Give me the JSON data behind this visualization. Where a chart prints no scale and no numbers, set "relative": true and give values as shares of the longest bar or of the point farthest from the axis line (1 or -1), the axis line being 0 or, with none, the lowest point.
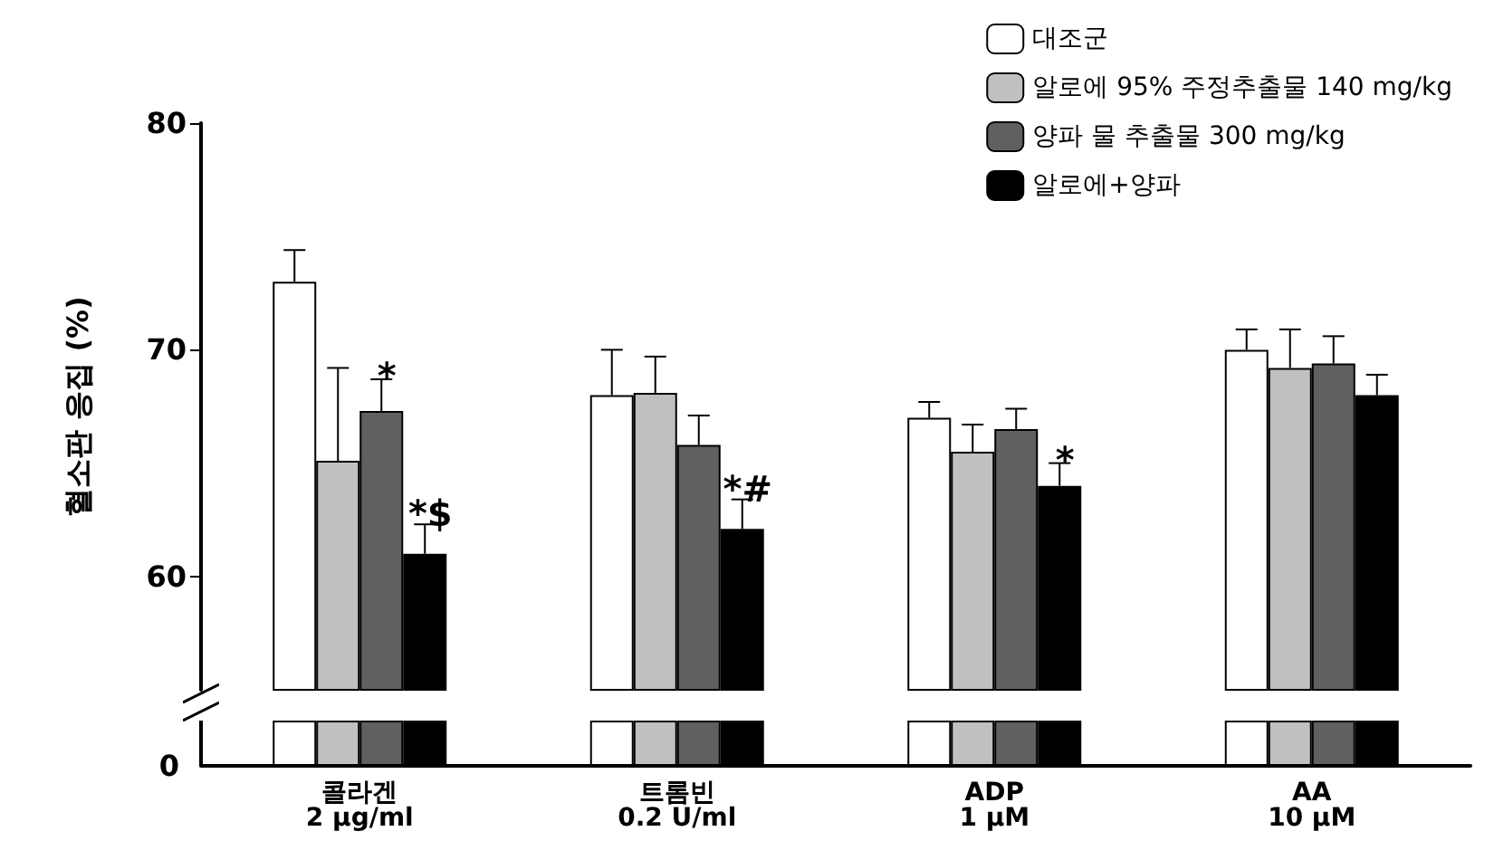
{
  "chart_data": [
    {
      "type": "bar",
      "ylabel": "혈소판 응집 (%)",
      "categories": [
        "콜라겐\n2 μg/ml",
        "트롬빈\n0.2 U/ml",
        "ADP\n1 μM",
        "AA\n10 μM"
      ],
      "series": [
        {
          "name": "대조군",
          "color": "#ffffff",
          "values": [
            73.0,
            68.0,
            67.0,
            70.0
          ],
          "errors": [
            [
              73.0,
              74.4
            ],
            [
              68.0,
              70.0
            ],
            [
              67.0,
              67.7
            ],
            [
              70.0,
              70.9
            ]
          ]
        },
        {
          "name": "알로에 95% 주정추출물 140 mg/kg",
          "color": "#c0c0c0",
          "values": [
            65.1,
            68.1,
            65.5,
            69.2
          ],
          "errors": [
            [
              65.1,
              69.2
            ],
            [
              68.1,
              69.7
            ],
            [
              65.5,
              66.7
            ],
            [
              69.2,
              70.9
            ]
          ]
        },
        {
          "name": "양파 물 추출물 300 mg/kg",
          "color": "#606060",
          "values": [
            67.3,
            65.8,
            66.5,
            69.4
          ],
          "errors": [
            [
              67.3,
              68.7
            ],
            [
              65.8,
              67.1
            ],
            [
              66.5,
              67.4
            ],
            [
              69.4,
              70.6
            ]
          ]
        },
        {
          "name": "알로에+양파",
          "color": "#000000",
          "values": [
            61.0,
            62.1,
            64.0,
            68.0
          ],
          "errors": [
            [
              61.0,
              62.3
            ],
            [
              62.1,
              63.4
            ],
            [
              64.0,
              65.0
            ],
            [
              68.0,
              68.9
            ]
          ]
        }
      ],
      "annotations": [
        {
          "text": "*",
          "x": "콜라겐\n2 μg/ml",
          "y": 67.3
        },
        {
          "text": "*$",
          "x": "콜라겐\n2 μg/ml",
          "y": 61.0
        },
        {
          "text": "*#",
          "x": "트롬빈\n0.2 U/ml",
          "y": 62.1
        },
        {
          "text": "*",
          "x": "ADP\n1 μM",
          "y": 64.0
        }
      ],
      "ylim": [
        55,
        80
      ],
      "yticks": [
        60,
        70,
        80
      ],
      "tick_labels": "y",
      "grid": false,
      "legend": "top right"
    },
    {
      "type": "bar",
      "relative": true,
      "categories": [
        "콜라겐\n2 μg/ml",
        "트롬빈\n0.2 U/ml",
        "ADP\n1 μM",
        "AA\n10 μM"
      ],
      "series": [
        {
          "color": "#ffffff",
          "values": [
            1,
            1,
            1,
            1
          ]
        },
        {
          "color": "#c0c0c0",
          "values": [
            1,
            1,
            1,
            1
          ]
        },
        {
          "color": "#606060",
          "values": [
            1,
            1,
            1,
            1
          ]
        },
        {
          "color": "#000000",
          "values": [
            1,
            1,
            1,
            1
          ]
        }
      ],
      "annotations": [
        "0"
      ],
      "tick_labels": "x"
    }
  ]
}
